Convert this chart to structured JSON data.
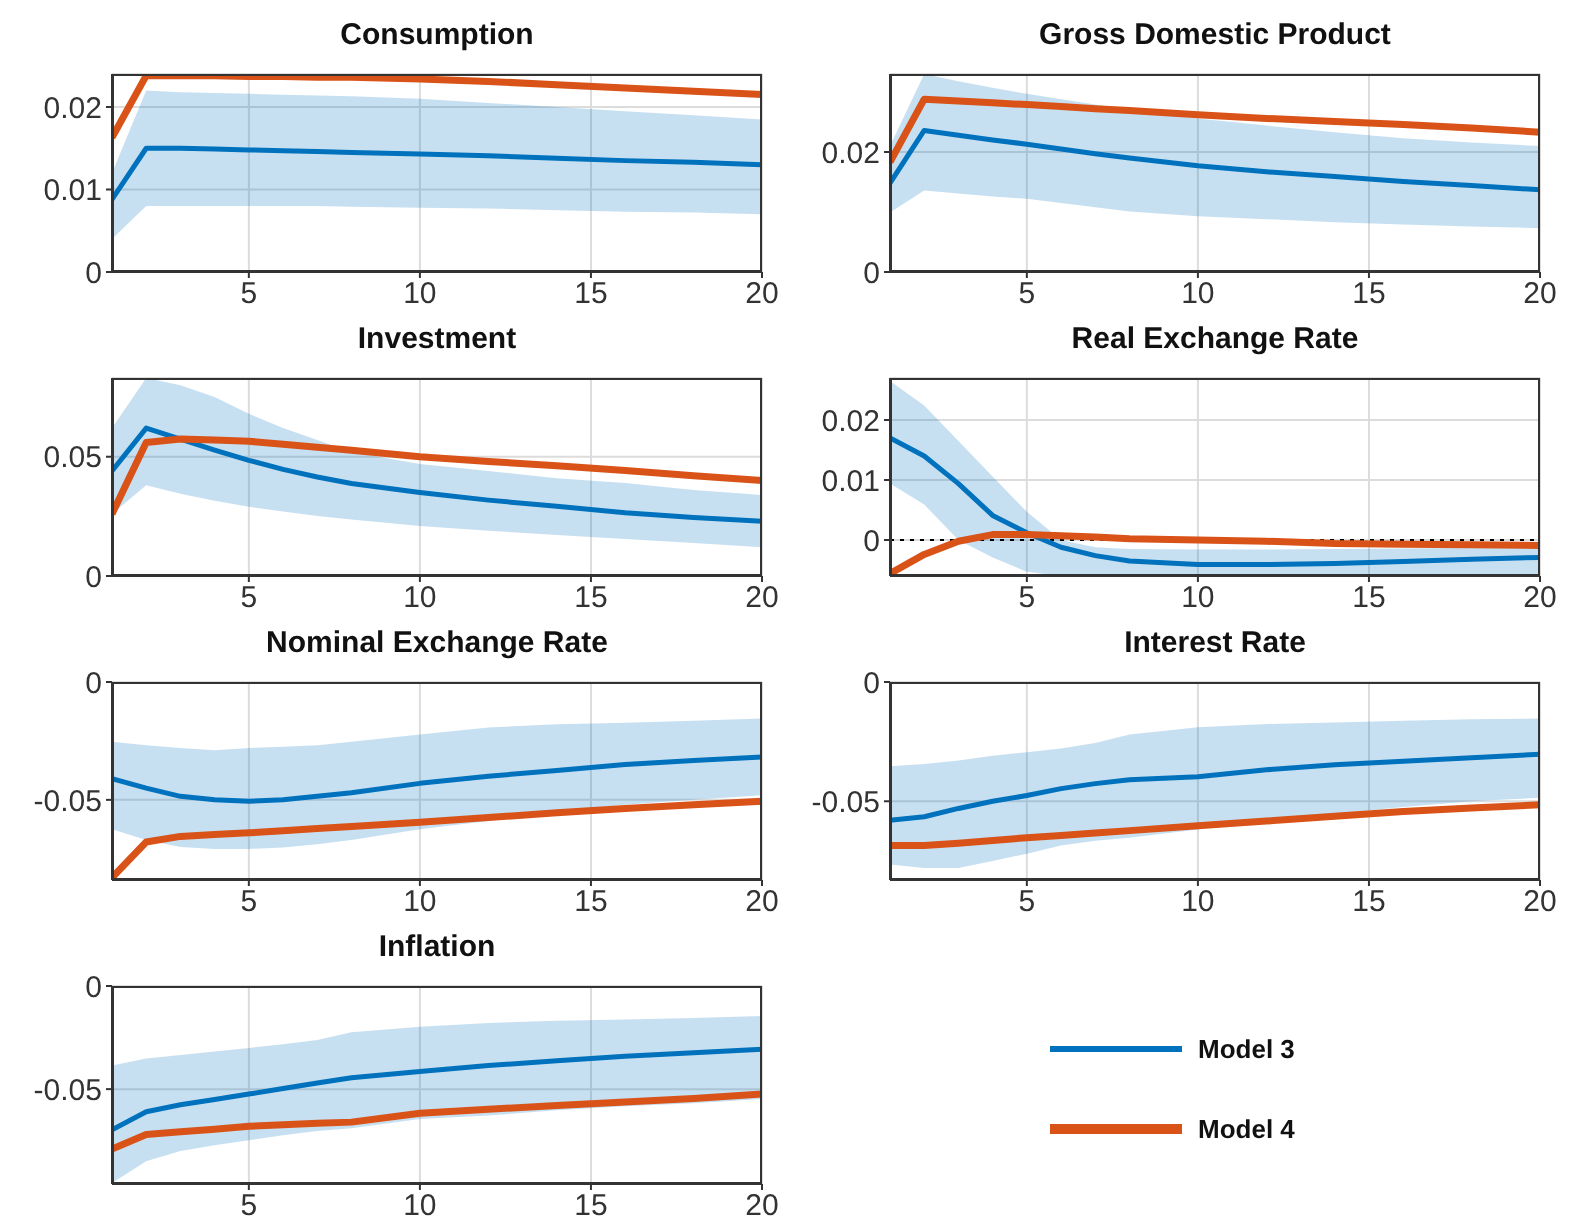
{
  "chart_data": [
    {
      "type": "line",
      "title": "Consumption",
      "x": [
        1,
        2,
        3,
        4,
        5,
        6,
        7,
        8,
        10,
        12,
        14,
        16,
        18,
        20
      ],
      "xlim": [
        1,
        20
      ],
      "xticks": [
        5,
        10,
        15,
        20
      ],
      "ylim": [
        0,
        0.024
      ],
      "yticks": [
        0,
        0.01,
        0.02
      ],
      "grid": true,
      "series": [
        {
          "color": "#0072bd",
          "values": [
            0.0088,
            0.015,
            0.015,
            0.0149,
            0.0148,
            0.0147,
            0.0146,
            0.0145,
            0.0143,
            0.0141,
            0.0138,
            0.0135,
            0.0133,
            0.013
          ],
          "lower": [
            0.004,
            0.008,
            0.008,
            0.008,
            0.008,
            0.008,
            0.008,
            0.0079,
            0.0078,
            0.0077,
            0.0075,
            0.0073,
            0.0072,
            0.007
          ],
          "upper": [
            0.012,
            0.022,
            0.0218,
            0.0217,
            0.0216,
            0.0215,
            0.0214,
            0.0213,
            0.021,
            0.0205,
            0.02,
            0.0195,
            0.019,
            0.0185
          ]
        },
        {
          "color": "#d95319",
          "values": [
            0.0163,
            0.0238,
            0.0238,
            0.0238,
            0.0237,
            0.0237,
            0.0236,
            0.0236,
            0.0234,
            0.0231,
            0.0227,
            0.0223,
            0.0219,
            0.0215
          ]
        }
      ]
    },
    {
      "type": "line",
      "title": "Gross Domestic Product",
      "x": [
        1,
        2,
        3,
        4,
        5,
        6,
        7,
        8,
        10,
        12,
        14,
        16,
        18,
        20
      ],
      "xlim": [
        1,
        20
      ],
      "xticks": [
        5,
        10,
        15,
        20
      ],
      "ylim": [
        0,
        0.033
      ],
      "yticks": [
        0,
        0.02
      ],
      "grid": true,
      "series": [
        {
          "color": "#0072bd",
          "values": [
            0.0148,
            0.0236,
            0.0228,
            0.022,
            0.0213,
            0.0205,
            0.0197,
            0.019,
            0.0177,
            0.0167,
            0.0159,
            0.0151,
            0.0144,
            0.0137
          ],
          "lower": [
            0.0099,
            0.0136,
            0.0131,
            0.0126,
            0.0122,
            0.0115,
            0.0108,
            0.0101,
            0.0093,
            0.0088,
            0.0083,
            0.0079,
            0.0076,
            0.0073
          ],
          "upper": [
            0.021,
            0.033,
            0.0318,
            0.0307,
            0.0297,
            0.0288,
            0.0279,
            0.027,
            0.0256,
            0.0244,
            0.0233,
            0.0223,
            0.0216,
            0.021
          ]
        },
        {
          "color": "#d95319",
          "values": [
            0.0183,
            0.0288,
            0.0285,
            0.0282,
            0.0279,
            0.0276,
            0.0272,
            0.0269,
            0.0262,
            0.0256,
            0.0251,
            0.0246,
            0.024,
            0.0233
          ]
        }
      ]
    },
    {
      "type": "line",
      "title": "Investment",
      "x": [
        1,
        2,
        3,
        4,
        5,
        6,
        7,
        8,
        10,
        12,
        14,
        16,
        18,
        20
      ],
      "xlim": [
        1,
        20
      ],
      "xticks": [
        5,
        10,
        15,
        20
      ],
      "ylim": [
        0,
        0.083
      ],
      "yticks": [
        0,
        0.05
      ],
      "grid": true,
      "series": [
        {
          "color": "#0072bd",
          "values": [
            0.044,
            0.062,
            0.0574,
            0.0528,
            0.0485,
            0.0447,
            0.0415,
            0.0388,
            0.035,
            0.0318,
            0.0292,
            0.0265,
            0.0245,
            0.023
          ],
          "lower": [
            0.026,
            0.038,
            0.0345,
            0.0315,
            0.029,
            0.027,
            0.0252,
            0.0237,
            0.021,
            0.019,
            0.0172,
            0.0155,
            0.0138,
            0.012
          ],
          "upper": [
            0.062,
            0.083,
            0.08,
            0.075,
            0.068,
            0.062,
            0.057,
            0.052,
            0.047,
            0.044,
            0.041,
            0.039,
            0.036,
            0.034
          ]
        },
        {
          "color": "#d95319",
          "values": [
            0.026,
            0.056,
            0.0574,
            0.057,
            0.0565,
            0.0552,
            0.054,
            0.0527,
            0.05,
            0.048,
            0.0462,
            0.0442,
            0.042,
            0.04
          ]
        }
      ]
    },
    {
      "type": "line",
      "title": "Real Exchange Rate",
      "x": [
        1,
        2,
        3,
        4,
        5,
        6,
        7,
        8,
        10,
        12,
        14,
        16,
        18,
        20
      ],
      "xlim": [
        1,
        20
      ],
      "xticks": [
        5,
        10,
        15,
        20
      ],
      "ylim": [
        -0.006,
        0.027
      ],
      "yticks": [
        0,
        0.01,
        0.02
      ],
      "grid": true,
      "ref_lines": [
        {
          "axis": "y",
          "value": 0,
          "color": "#000000",
          "line_style": "dotted"
        }
      ],
      "series": [
        {
          "color": "#0072bd",
          "values": [
            0.017,
            0.014,
            0.0094,
            0.0041,
            0.0012,
            -0.0012,
            -0.0026,
            -0.0035,
            -0.0041,
            -0.0041,
            -0.0039,
            -0.0036,
            -0.0032,
            -0.0029
          ],
          "lower": [
            0.0094,
            0.0059,
            0,
            -0.0029,
            -0.0053,
            -0.006,
            -0.006,
            -0.006,
            -0.006,
            -0.006,
            -0.006,
            -0.006,
            -0.006,
            -0.006
          ],
          "upper": [
            0.0265,
            0.0224,
            0.0165,
            0.0106,
            0.0047,
            0,
            -0.0012,
            -0.0015,
            -0.0016,
            -0.0016,
            -0.0015,
            -0.0014,
            -0.0013,
            -0.0012
          ]
        },
        {
          "color": "#d95319",
          "values": [
            -0.0056,
            -0.0024,
            -0.0002,
            0.0009,
            0.0009,
            0.0007,
            0.0005,
            0.0002,
            0,
            -0.0002,
            -0.0006,
            -0.0007,
            -0.0008,
            -0.0009
          ]
        }
      ]
    },
    {
      "type": "line",
      "title": "Nominal Exchange Rate",
      "x": [
        1,
        2,
        3,
        4,
        5,
        6,
        7,
        8,
        10,
        12,
        14,
        16,
        18,
        20
      ],
      "xlim": [
        1,
        20
      ],
      "xticks": [
        5,
        10,
        15,
        20
      ],
      "ylim": [
        -0.084,
        0
      ],
      "yticks": [
        -0.05,
        0
      ],
      "grid": true,
      "series": [
        {
          "color": "#0072bd",
          "values": [
            -0.041,
            -0.045,
            -0.0485,
            -0.05,
            -0.0506,
            -0.05,
            -0.0485,
            -0.047,
            -0.043,
            -0.04,
            -0.0375,
            -0.035,
            -0.0333,
            -0.0318
          ],
          "lower": [
            -0.0625,
            -0.067,
            -0.07,
            -0.0708,
            -0.0708,
            -0.0702,
            -0.0688,
            -0.067,
            -0.0625,
            -0.059,
            -0.0551,
            -0.0521,
            -0.05,
            -0.048
          ],
          "upper": [
            -0.0253,
            -0.0268,
            -0.028,
            -0.029,
            -0.028,
            -0.0275,
            -0.0268,
            -0.0253,
            -0.0223,
            -0.0193,
            -0.0179,
            -0.0173,
            -0.0164,
            -0.0155
          ]
        },
        {
          "color": "#d95319",
          "values": [
            -0.083,
            -0.0679,
            -0.0655,
            -0.0647,
            -0.064,
            -0.0631,
            -0.0622,
            -0.0613,
            -0.0595,
            -0.0575,
            -0.0555,
            -0.0537,
            -0.0521,
            -0.0506
          ]
        }
      ]
    },
    {
      "type": "line",
      "title": "Interest Rate",
      "x": [
        1,
        2,
        3,
        4,
        5,
        6,
        7,
        8,
        10,
        12,
        14,
        16,
        18,
        20
      ],
      "xlim": [
        1,
        20
      ],
      "xticks": [
        5,
        10,
        15,
        20
      ],
      "ylim": [
        -0.083,
        0
      ],
      "yticks": [
        -0.05,
        0
      ],
      "grid": true,
      "series": [
        {
          "color": "#0072bd",
          "values": [
            -0.058,
            -0.0565,
            -0.053,
            -0.05,
            -0.0476,
            -0.0447,
            -0.0426,
            -0.041,
            -0.0397,
            -0.0368,
            -0.0347,
            -0.0332,
            -0.0318,
            -0.0303
          ],
          "lower": [
            -0.0765,
            -0.078,
            -0.078,
            -0.075,
            -0.072,
            -0.0685,
            -0.0665,
            -0.0653,
            -0.0618,
            -0.0582,
            -0.0553,
            -0.0524,
            -0.05,
            -0.0485
          ],
          "upper": [
            -0.0353,
            -0.0344,
            -0.0329,
            -0.0309,
            -0.0294,
            -0.0279,
            -0.0256,
            -0.022,
            -0.019,
            -0.0176,
            -0.017,
            -0.0162,
            -0.0156,
            -0.0153
          ]
        },
        {
          "color": "#d95319",
          "values": [
            -0.0685,
            -0.0685,
            -0.0676,
            -0.0664,
            -0.0653,
            -0.0643,
            -0.0633,
            -0.0623,
            -0.0603,
            -0.0583,
            -0.0563,
            -0.0543,
            -0.0528,
            -0.0515
          ]
        }
      ]
    },
    {
      "type": "line",
      "title": "Inflation",
      "x": [
        1,
        2,
        3,
        4,
        5,
        6,
        7,
        8,
        10,
        12,
        14,
        16,
        18,
        20
      ],
      "xlim": [
        1,
        20
      ],
      "xticks": [
        5,
        10,
        15,
        20
      ],
      "ylim": [
        -0.096,
        0
      ],
      "yticks": [
        -0.05,
        0
      ],
      "grid": true,
      "legend": "right",
      "series": [
        {
          "name": "Model 3",
          "color": "#0072bd",
          "values": [
            -0.0697,
            -0.061,
            -0.0576,
            -0.055,
            -0.0524,
            -0.0497,
            -0.047,
            -0.0445,
            -0.0414,
            -0.0386,
            -0.0362,
            -0.0341,
            -0.0324,
            -0.0307
          ],
          "lower": [
            -0.0955,
            -0.085,
            -0.08,
            -0.0772,
            -0.0748,
            -0.0724,
            -0.0703,
            -0.069,
            -0.0645,
            -0.0628,
            -0.0603,
            -0.0583,
            -0.0569,
            -0.0548
          ],
          "upper": [
            -0.0386,
            -0.0352,
            -0.0334,
            -0.0317,
            -0.03,
            -0.0283,
            -0.0262,
            -0.0224,
            -0.0197,
            -0.0179,
            -0.0169,
            -0.0162,
            -0.0155,
            -0.0145
          ]
        },
        {
          "name": "Model 4",
          "color": "#d95319",
          "values": [
            -0.079,
            -0.072,
            -0.0707,
            -0.0694,
            -0.068,
            -0.0673,
            -0.0666,
            -0.066,
            -0.0617,
            -0.0598,
            -0.0579,
            -0.0562,
            -0.0545,
            -0.0524
          ]
        }
      ]
    }
  ]
}
